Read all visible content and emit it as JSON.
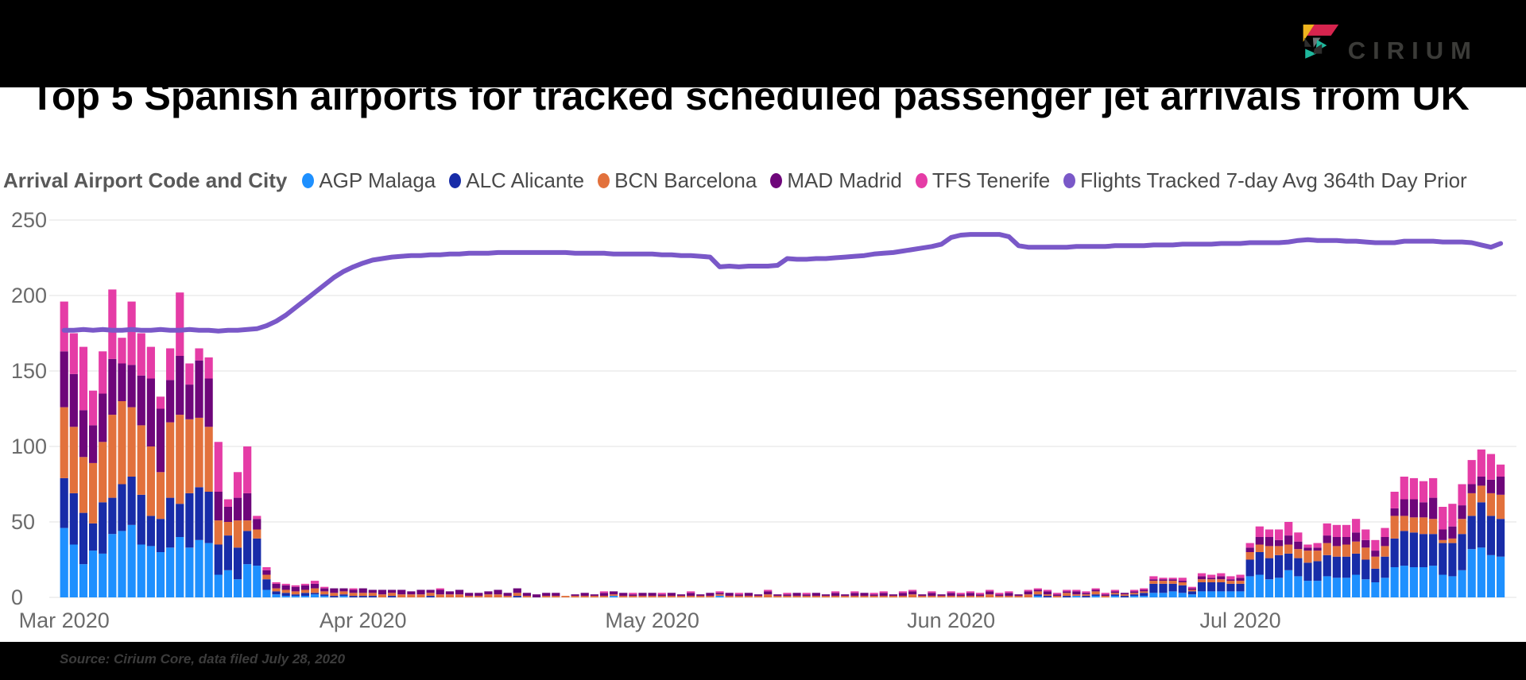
{
  "header": {
    "logo_text": "CIRIUM"
  },
  "title": "Top 5 Spanish airports for tracked scheduled passenger jet arrivals from UK",
  "legend": {
    "heading": "Arrival Airport Code and City",
    "items": [
      {
        "label": "AGP Malaga",
        "color": "#1E90FF"
      },
      {
        "label": "ALC Alicante",
        "color": "#182CA8"
      },
      {
        "label": "BCN Barcelona",
        "color": "#E2713C"
      },
      {
        "label": "MAD Madrid",
        "color": "#6E067A"
      },
      {
        "label": "TFS Tenerife",
        "color": "#E53CA6"
      },
      {
        "label": "Flights Tracked 7-day Avg 364th Day Prior",
        "color": "#7A58C8"
      }
    ]
  },
  "footer": {
    "source": "Source: Cirium Core, data filed July 28, 2020"
  },
  "chart_data": {
    "type": "bar",
    "subtype": "stacked-bars-with-line-overlay",
    "start_date": "2020-03-01",
    "end_date": "2020-07-28",
    "days": 150,
    "ylim": [
      0,
      250
    ],
    "y_ticks": [
      0,
      50,
      100,
      150,
      200,
      250
    ],
    "x_ticks": [
      {
        "label": "Mar 2020",
        "day": 0
      },
      {
        "label": "Apr 2020",
        "day": 31
      },
      {
        "label": "May 2020",
        "day": 61
      },
      {
        "label": "Jun 2020",
        "day": 92
      },
      {
        "label": "Jul 2020",
        "day": 122
      }
    ],
    "grid": true,
    "legend_position": "top",
    "series": [
      {
        "name": "AGP Malaga",
        "color": "#1E90FF",
        "values": [
          46,
          35,
          22,
          31,
          29,
          42,
          44,
          48,
          35,
          34,
          30,
          33,
          40,
          33,
          38,
          36,
          15,
          18,
          12,
          22,
          21,
          5,
          2,
          1,
          1,
          1,
          2,
          1,
          0,
          1,
          0,
          0,
          0,
          0,
          0,
          0,
          0,
          0,
          0,
          0,
          0,
          0,
          0,
          0,
          0,
          0,
          0,
          0,
          0,
          0,
          0,
          0,
          0,
          0,
          0,
          0,
          0,
          1,
          0,
          0,
          0,
          0,
          0,
          0,
          0,
          0,
          0,
          0,
          1,
          0,
          0,
          0,
          0,
          0,
          0,
          0,
          0,
          0,
          0,
          0,
          0,
          0,
          0,
          0,
          0,
          0,
          0,
          0,
          0,
          0,
          0,
          0,
          0,
          0,
          0,
          0,
          0,
          0,
          0,
          0,
          0,
          1,
          0,
          0,
          0,
          1,
          0,
          1,
          0,
          1,
          0,
          1,
          1,
          3,
          3,
          4,
          3,
          2,
          4,
          4,
          4,
          4,
          4,
          14,
          15,
          12,
          13,
          18,
          14,
          11,
          11,
          14,
          13,
          13,
          15,
          12,
          10,
          13,
          20,
          21,
          20,
          20,
          21,
          15,
          14,
          18,
          32,
          33,
          28,
          27
        ]
      },
      {
        "name": "ALC Alicante",
        "color": "#182CA8",
        "values": [
          33,
          34,
          34,
          18,
          34,
          24,
          31,
          32,
          33,
          20,
          22,
          33,
          22,
          36,
          35,
          34,
          20,
          23,
          21,
          22,
          18,
          7,
          2,
          2,
          1,
          2,
          1,
          1,
          1,
          1,
          1,
          1,
          1,
          0,
          1,
          0,
          0,
          0,
          1,
          0,
          0,
          0,
          0,
          0,
          0,
          0,
          0,
          1,
          0,
          0,
          0,
          0,
          0,
          0,
          0,
          0,
          0,
          0,
          0,
          0,
          0,
          0,
          0,
          0,
          0,
          0,
          0,
          0,
          0,
          0,
          0,
          0,
          0,
          0,
          0,
          0,
          0,
          0,
          0,
          0,
          0,
          0,
          0,
          0,
          0,
          0,
          0,
          0,
          0,
          0,
          0,
          0,
          0,
          0,
          0,
          0,
          0,
          0,
          0,
          0,
          0,
          1,
          1,
          0,
          1,
          0,
          1,
          1,
          0,
          1,
          1,
          1,
          2,
          6,
          6,
          5,
          5,
          2,
          6,
          6,
          6,
          5,
          5,
          11,
          15,
          14,
          15,
          11,
          12,
          12,
          13,
          14,
          14,
          14,
          14,
          13,
          9,
          14,
          19,
          23,
          23,
          22,
          21,
          21,
          22,
          24,
          22,
          30,
          26,
          25
        ]
      },
      {
        "name": "BCN Barcelona",
        "color": "#E2713C",
        "values": [
          47,
          44,
          37,
          40,
          40,
          55,
          55,
          46,
          46,
          46,
          31,
          50,
          59,
          49,
          46,
          43,
          16,
          9,
          18,
          7,
          6,
          3,
          2,
          2,
          2,
          2,
          3,
          2,
          2,
          2,
          2,
          2,
          2,
          2,
          2,
          2,
          2,
          2,
          2,
          2,
          2,
          2,
          1,
          1,
          2,
          2,
          1,
          2,
          1,
          0,
          1,
          1,
          1,
          1,
          1,
          1,
          1,
          1,
          1,
          1,
          1,
          1,
          1,
          1,
          1,
          1,
          1,
          1,
          1,
          1,
          1,
          1,
          1,
          2,
          1,
          1,
          1,
          1,
          1,
          1,
          1,
          1,
          1,
          1,
          1,
          1,
          1,
          1,
          2,
          1,
          1,
          1,
          1,
          1,
          1,
          1,
          2,
          1,
          1,
          1,
          2,
          2,
          1,
          1,
          2,
          1,
          1,
          2,
          1,
          1,
          1,
          1,
          1,
          2,
          2,
          2,
          2,
          1,
          2,
          2,
          2,
          2,
          2,
          5,
          5,
          8,
          6,
          6,
          6,
          8,
          7,
          8,
          7,
          8,
          8,
          8,
          8,
          7,
          15,
          10,
          10,
          11,
          10,
          2,
          3,
          10,
          15,
          11,
          15,
          16
        ]
      },
      {
        "name": "MAD Madrid",
        "color": "#6E067A",
        "values": [
          37,
          35,
          31,
          25,
          32,
          37,
          25,
          28,
          33,
          45,
          42,
          28,
          39,
          23,
          38,
          32,
          19,
          10,
          15,
          18,
          7,
          3,
          3,
          3,
          3,
          3,
          3,
          2,
          3,
          2,
          2,
          3,
          2,
          3,
          2,
          3,
          2,
          3,
          2,
          3,
          2,
          3,
          2,
          2,
          2,
          3,
          2,
          3,
          2,
          2,
          2,
          2,
          0,
          1,
          2,
          1,
          2,
          2,
          2,
          1,
          2,
          2,
          1,
          2,
          1,
          2,
          1,
          2,
          1,
          2,
          1,
          2,
          1,
          2,
          1,
          1,
          2,
          1,
          2,
          1,
          2,
          1,
          2,
          2,
          1,
          2,
          1,
          2,
          2,
          1,
          2,
          1,
          2,
          1,
          2,
          1,
          2,
          1,
          2,
          1,
          2,
          1,
          2,
          1,
          1,
          2,
          1,
          1,
          1,
          1,
          1,
          1,
          1,
          1,
          1,
          1,
          1,
          1,
          2,
          1,
          2,
          1,
          2,
          3,
          5,
          6,
          4,
          6,
          5,
          2,
          2,
          5,
          6,
          5,
          6,
          5,
          4,
          6,
          5,
          11,
          12,
          10,
          14,
          7,
          8,
          9,
          6,
          6,
          9,
          12
        ]
      },
      {
        "name": "TFS Tenerife",
        "color": "#E53CA6",
        "values": [
          33,
          27,
          42,
          23,
          28,
          46,
          17,
          42,
          28,
          21,
          8,
          21,
          42,
          14,
          8,
          14,
          33,
          5,
          17,
          31,
          2,
          2,
          1,
          1,
          1,
          1,
          2,
          1,
          0,
          0,
          1,
          0,
          0,
          0,
          0,
          0,
          0,
          0,
          0,
          1,
          0,
          0,
          0,
          0,
          0,
          0,
          0,
          0,
          0,
          0,
          0,
          0,
          0,
          0,
          0,
          0,
          1,
          0,
          0,
          1,
          0,
          0,
          1,
          0,
          0,
          1,
          0,
          0,
          1,
          0,
          1,
          0,
          0,
          1,
          0,
          1,
          0,
          1,
          0,
          0,
          1,
          0,
          1,
          0,
          1,
          1,
          0,
          1,
          1,
          0,
          1,
          0,
          1,
          1,
          1,
          1,
          1,
          1,
          1,
          0,
          1,
          1,
          1,
          1,
          1,
          1,
          1,
          1,
          1,
          1,
          0,
          1,
          1,
          2,
          1,
          1,
          2,
          1,
          2,
          2,
          2,
          2,
          2,
          3,
          7,
          5,
          7,
          9,
          6,
          2,
          3,
          8,
          8,
          8,
          9,
          7,
          7,
          6,
          11,
          15,
          14,
          14,
          13,
          15,
          15,
          14,
          16,
          18,
          17,
          8
        ]
      }
    ],
    "line": {
      "name": "Flights Tracked 7-day Avg 364th Day Prior",
      "color": "#7A58C8",
      "values": [
        177,
        177,
        177.5,
        177,
        177.5,
        177,
        177,
        177.5,
        177,
        177,
        177.5,
        177,
        177,
        177.5,
        177,
        177,
        176.5,
        177,
        177,
        177.5,
        178,
        180,
        183,
        187,
        192,
        197,
        202,
        207,
        212,
        216,
        219,
        221.5,
        223.5,
        224.5,
        225.5,
        226,
        226.5,
        226.5,
        227,
        227,
        227.5,
        227.5,
        228,
        228,
        228,
        228.5,
        228.5,
        228.5,
        228.5,
        228.5,
        228.5,
        228.5,
        228.5,
        228,
        228,
        228,
        228,
        227.5,
        227.5,
        227.5,
        227.5,
        227.5,
        227,
        227,
        226.5,
        226.5,
        226,
        225.5,
        219,
        219.5,
        219,
        219.5,
        219.5,
        219.5,
        220,
        224.5,
        224,
        224,
        224.5,
        224.5,
        225,
        225.5,
        226,
        226.5,
        227.5,
        228,
        228.5,
        229.5,
        230.5,
        231.5,
        232.5,
        234,
        238.5,
        240,
        240.5,
        240.5,
        240.5,
        240.5,
        239,
        233,
        232,
        232,
        232,
        232,
        232,
        232.5,
        232.5,
        232.5,
        232.5,
        233,
        233,
        233,
        233,
        233.5,
        233.5,
        233.5,
        234,
        234,
        234,
        234,
        234.5,
        234.5,
        234.5,
        235,
        235,
        235,
        235,
        235.5,
        236.5,
        237,
        236.5,
        236.5,
        236.5,
        236,
        236,
        235.5,
        235,
        235,
        235,
        236,
        236,
        236,
        236,
        235.5,
        235.5,
        235.5,
        235,
        233.5,
        232,
        234.5
      ]
    }
  }
}
